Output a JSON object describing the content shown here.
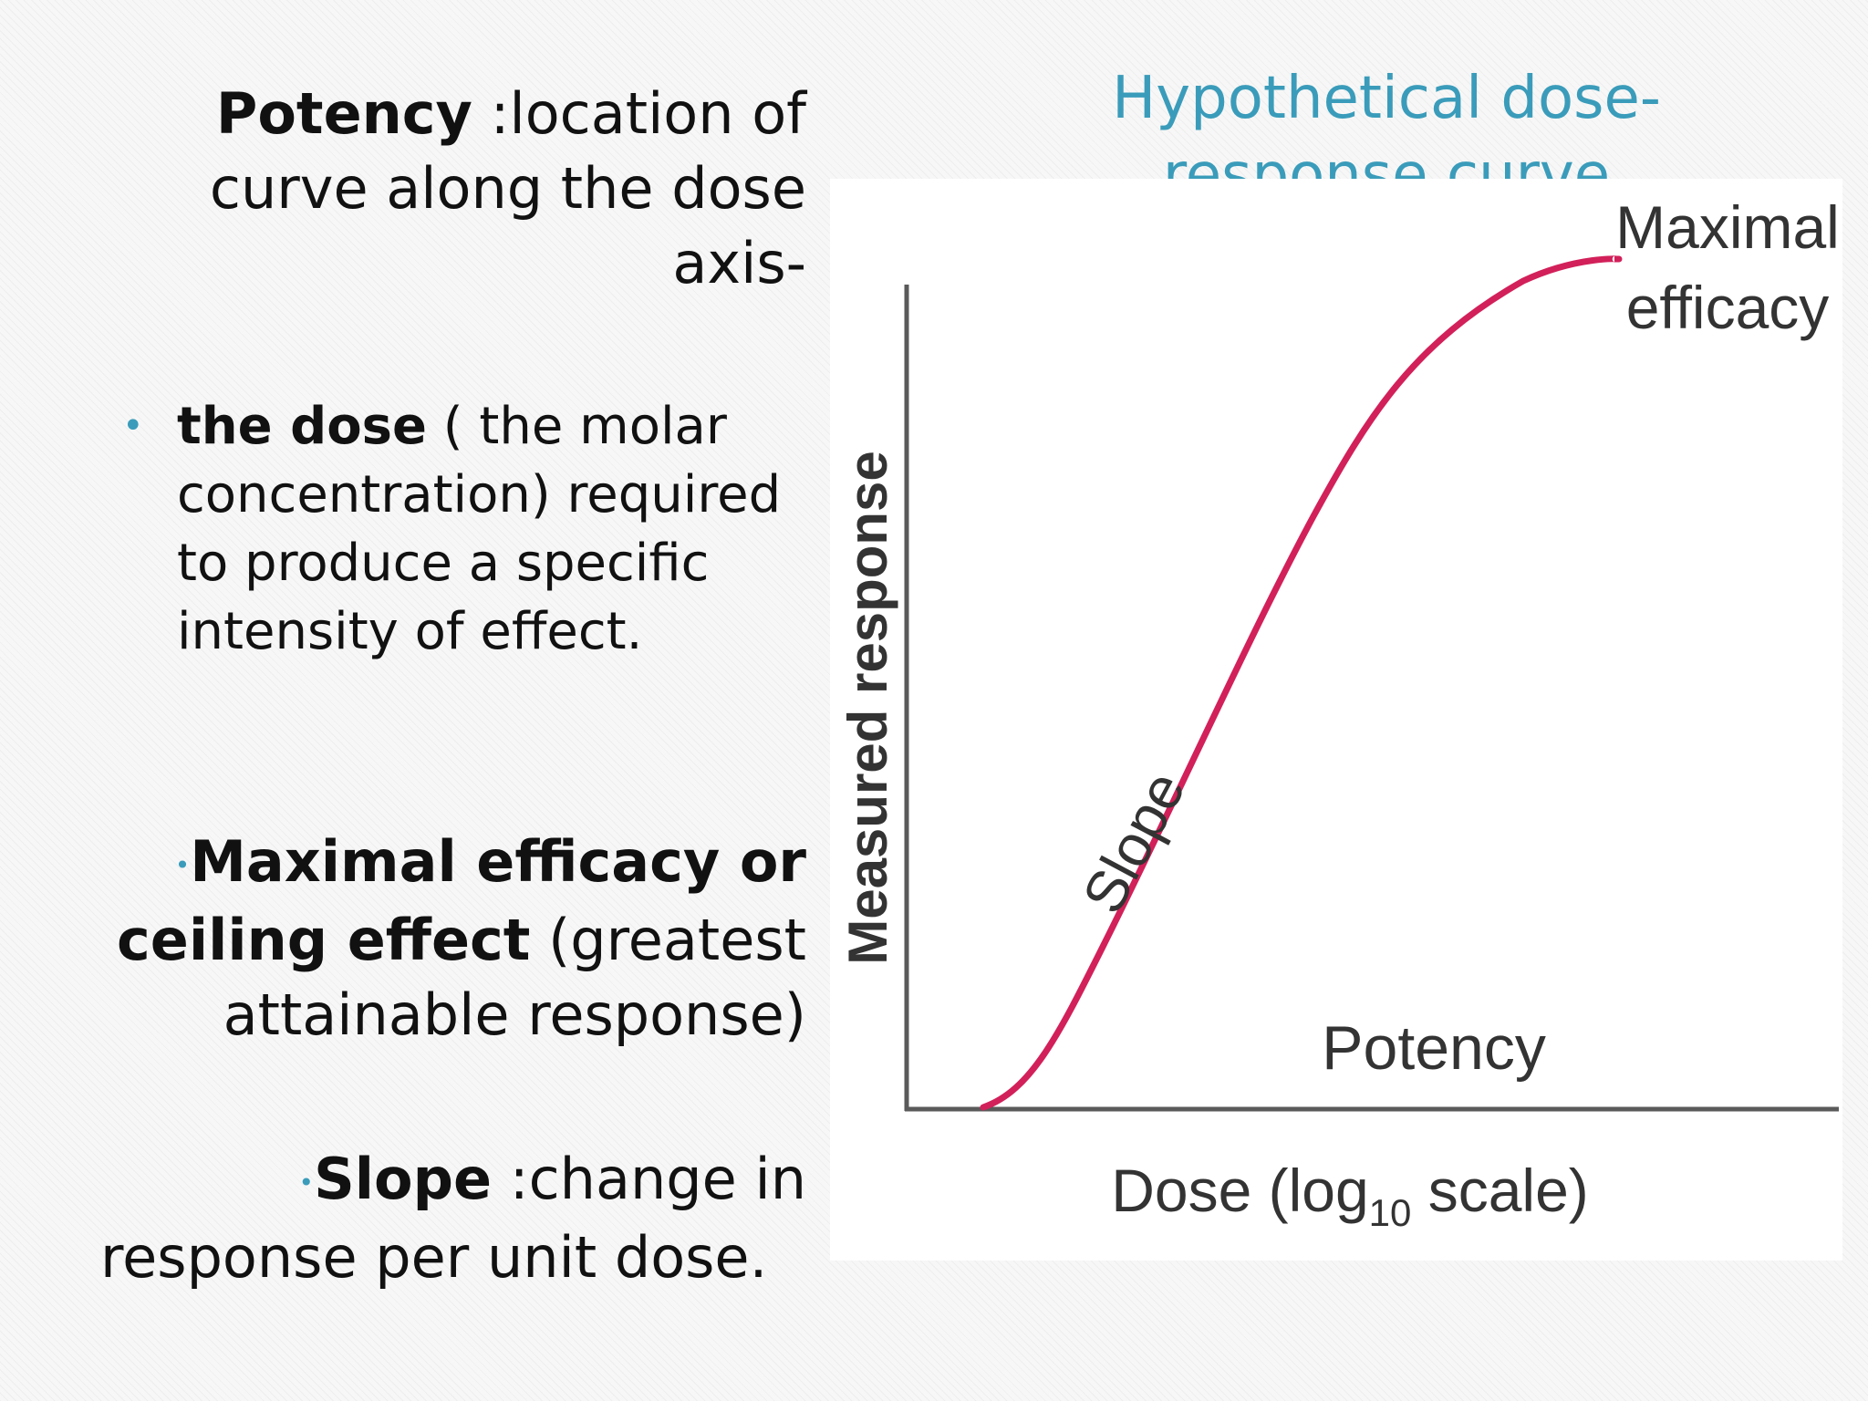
{
  "left": {
    "potency_bold": "Potency",
    "potency_line1_rest": " :location of",
    "potency_line2": "curve along the dose",
    "potency_line3": "axis-",
    "bullet_bold": "the dose",
    "bullet_rest": " ( the molar concentration) required to produce a specific intensity of effect.",
    "max_bold_1": "Maximal efficacy or",
    "max_bold_2": "ceiling effect",
    "max_rest_2": " (greatest",
    "max_line3": "attainable response)",
    "slope_bold": "Slope",
    "slope_rest": " :change in",
    "slope_line2": "response per unit dose."
  },
  "figure": {
    "title": "Hypothetical dose-response curve",
    "y_axis_label": "Measured response",
    "x_axis_label_prefix": "Dose (log",
    "x_axis_label_sub": "10",
    "x_axis_label_suffix": " scale)",
    "label_maximal": "Maximal",
    "label_efficacy": "efficacy",
    "label_slope": "Slope",
    "label_potency": "Potency",
    "curve_color": "#d2205a",
    "title_color": "#3a9cba"
  }
}
